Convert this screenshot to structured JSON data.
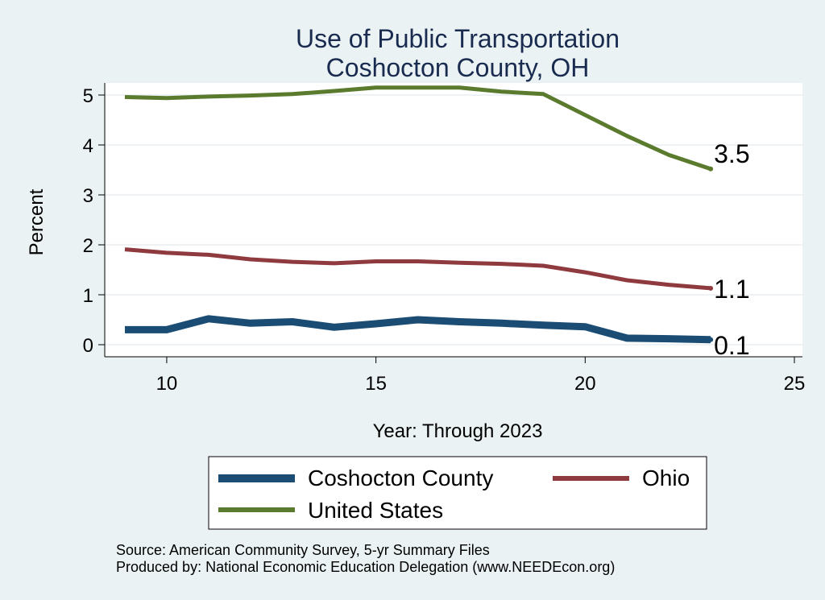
{
  "chart_data": {
    "type": "line",
    "title": [
      "Use of Public Transportation",
      "Coshocton County, OH"
    ],
    "xlabel": "Year: Through 2023",
    "ylabel": "Percent",
    "xlim": [
      9,
      25
    ],
    "ylim": [
      0,
      5
    ],
    "x_ticks": [
      10,
      15,
      20,
      25
    ],
    "y_ticks": [
      0,
      1,
      2,
      3,
      4,
      5
    ],
    "grid": true,
    "legend_position": "bottom",
    "series": [
      {
        "name": "Coshocton County",
        "color": "#1a4c74",
        "width": 9,
        "x": [
          9,
          10,
          11,
          12,
          13,
          14,
          15,
          16,
          17,
          18,
          19,
          20,
          21,
          22,
          23
        ],
        "y": [
          0.3,
          0.3,
          0.52,
          0.43,
          0.46,
          0.35,
          0.42,
          0.5,
          0.46,
          0.43,
          0.39,
          0.36,
          0.13,
          0.12,
          0.1
        ],
        "end_label": "0.1"
      },
      {
        "name": "Ohio",
        "color": "#8f3a3f",
        "width": 5,
        "x": [
          9,
          10,
          11,
          12,
          13,
          14,
          15,
          16,
          17,
          18,
          19,
          20,
          21,
          22,
          23
        ],
        "y": [
          1.91,
          1.84,
          1.8,
          1.71,
          1.66,
          1.63,
          1.67,
          1.67,
          1.64,
          1.62,
          1.58,
          1.45,
          1.29,
          1.2,
          1.13
        ],
        "end_label": "1.1"
      },
      {
        "name": "United States",
        "color": "#5a7a2e",
        "width": 5,
        "x": [
          9,
          10,
          11,
          12,
          13,
          14,
          15,
          16,
          17,
          18,
          19,
          20,
          21,
          22,
          23
        ],
        "y": [
          4.96,
          4.94,
          4.97,
          4.99,
          5.02,
          5.08,
          5.15,
          5.15,
          5.15,
          5.07,
          5.02,
          4.6,
          4.18,
          3.8,
          3.52
        ],
        "end_label": "3.5"
      }
    ],
    "notes": [
      "Source: American Community Survey, 5-yr Summary Files",
      "Produced by: National Economic Education Delegation (www.NEEDEcon.org)"
    ]
  }
}
